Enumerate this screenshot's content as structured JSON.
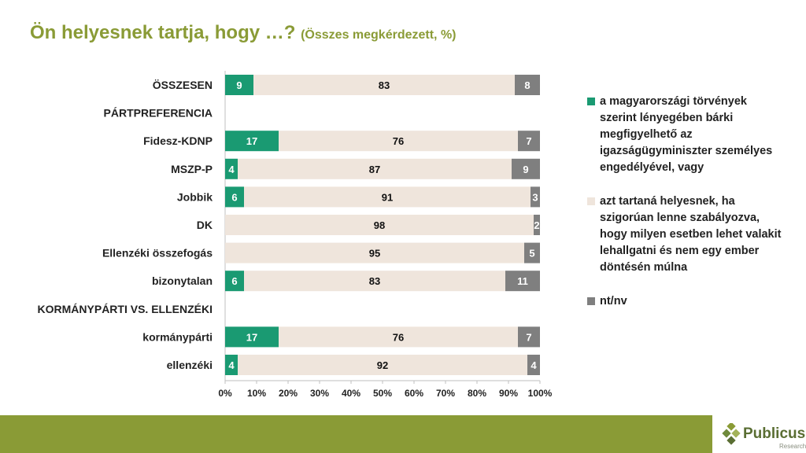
{
  "title": {
    "main": "Ön helyesnek tartja, hogy …?",
    "sub": "(Összes megkérdezett, %)"
  },
  "colors": {
    "title": "#8a9b36",
    "s1": "#1a9a72",
    "s2": "#efe5dc",
    "s3": "#7f7f7f",
    "footer": "#8a9b36"
  },
  "chart_data": {
    "type": "bar",
    "orientation": "horizontal",
    "stacked": true,
    "rows": [
      {
        "label": "ÖSSZESEN",
        "values": [
          9,
          83,
          8
        ]
      },
      {
        "label": "PÁRTPREFERENCIA",
        "header": true
      },
      {
        "label": "Fidesz-KDNP",
        "values": [
          17,
          76,
          7
        ]
      },
      {
        "label": "MSZP-P",
        "values": [
          4,
          87,
          9
        ]
      },
      {
        "label": "Jobbik",
        "values": [
          6,
          91,
          3
        ]
      },
      {
        "label": "DK",
        "values": [
          0,
          98,
          2
        ]
      },
      {
        "label": "Ellenzéki összefogás",
        "values": [
          0,
          95,
          5
        ]
      },
      {
        "label": "bizonytalan",
        "values": [
          6,
          83,
          11
        ]
      },
      {
        "label": "KORMÁNYPÁRTI VS. ELLENZÉKI",
        "header": true
      },
      {
        "label": "kormánypárti",
        "values": [
          17,
          76,
          7
        ]
      },
      {
        "label": "ellenzéki",
        "values": [
          4,
          92,
          4
        ]
      }
    ],
    "series": [
      {
        "name": "a magyarországi törvények szerint lényegében bárki megfigyelhető az igazságügyminiszter személyes engedélyével, vagy"
      },
      {
        "name": "azt tartaná helyesnek, ha szigorúan lenne szabályozva, hogy milyen esetben lehet valakit lehallgatni és nem egy ember döntésén múlna"
      },
      {
        "name": "nt/nv"
      }
    ],
    "xticks": [
      "0%",
      "10%",
      "20%",
      "30%",
      "40%",
      "50%",
      "60%",
      "70%",
      "80%",
      "90%",
      "100%"
    ],
    "xlim": [
      0,
      100
    ],
    "legend_position": "right"
  },
  "brand": {
    "name": "Publicus",
    "tagline": "Research"
  }
}
